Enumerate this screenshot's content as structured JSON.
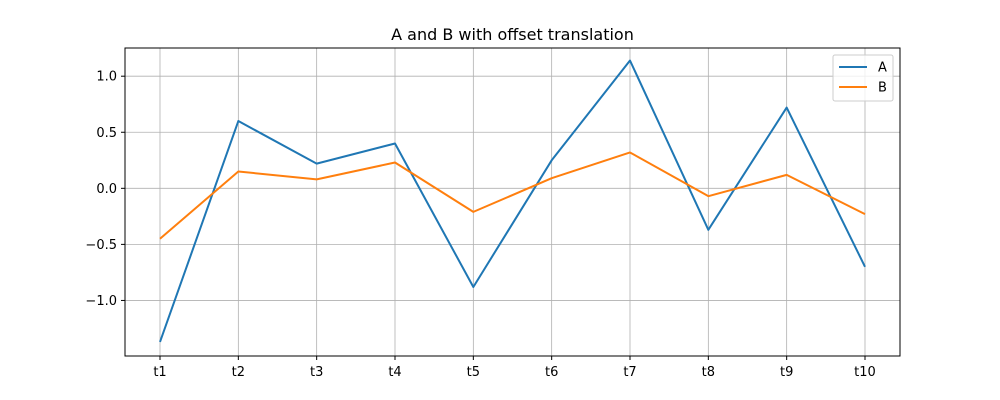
{
  "chart_data": {
    "type": "line",
    "title": "A and B with offset translation",
    "xlabel": "",
    "ylabel": "",
    "categories": [
      "t1",
      "t2",
      "t3",
      "t4",
      "t5",
      "t6",
      "t7",
      "t8",
      "t9",
      "t10"
    ],
    "series": [
      {
        "name": "A",
        "color": "#1f77b4",
        "values": [
          -1.37,
          0.6,
          0.22,
          0.4,
          -0.88,
          0.25,
          1.14,
          -0.37,
          0.72,
          -0.7
        ]
      },
      {
        "name": "B",
        "color": "#ff7f0e",
        "values": [
          -0.45,
          0.15,
          0.08,
          0.23,
          -0.21,
          0.09,
          0.32,
          -0.07,
          0.12,
          -0.23
        ]
      }
    ],
    "ylim": [
      -1.4955,
      1.2515
    ],
    "yticks": [
      -1.0,
      -0.5,
      0.0,
      0.5,
      1.0
    ],
    "ytick_labels": [
      "−1.0",
      "−0.5",
      "0.0",
      "0.5",
      "1.0"
    ],
    "grid": true,
    "legend_position": "upper-right"
  }
}
